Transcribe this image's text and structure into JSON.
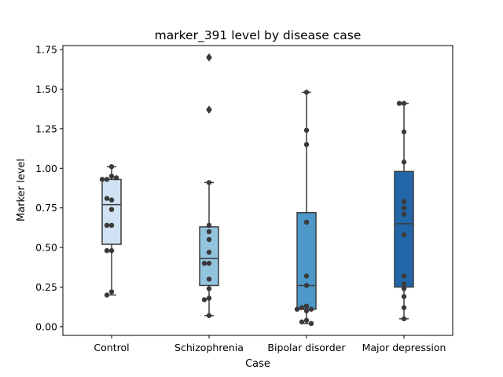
{
  "chart_data": {
    "type": "box",
    "title": "marker_391 level by disease case",
    "xlabel": "Case",
    "ylabel": "Marker level",
    "ylim": [
      -0.055,
      1.775
    ],
    "yticks": [
      0.0,
      0.25,
      0.5,
      0.75,
      1.0,
      1.25,
      1.5,
      1.75
    ],
    "ytick_labels": [
      "0.00",
      "0.25",
      "0.50",
      "0.75",
      "1.00",
      "1.25",
      "1.50",
      "1.75"
    ],
    "categories": [
      "Control",
      "Schizophrenia",
      "Bipolar disorder",
      "Major depression"
    ],
    "colors": [
      "#cfe1f2",
      "#93c4de",
      "#4b98c9",
      "#2366a7"
    ],
    "box_stats": [
      {
        "whislo": 0.2,
        "q1": 0.52,
        "med": 0.77,
        "q3": 0.93,
        "whishi": 1.01,
        "fliers": []
      },
      {
        "whislo": 0.07,
        "q1": 0.26,
        "med": 0.43,
        "q3": 0.63,
        "whishi": 0.91,
        "fliers": [
          1.37,
          1.7
        ]
      },
      {
        "whislo": 0.02,
        "q1": 0.11,
        "med": 0.26,
        "q3": 0.72,
        "whishi": 1.48,
        "fliers": []
      },
      {
        "whislo": 0.05,
        "q1": 0.25,
        "med": 0.65,
        "q3": 0.98,
        "whishi": 1.41,
        "fliers": []
      }
    ],
    "points": [
      [
        0.95,
        0.93,
        0.94,
        1.01,
        0.93,
        0.8,
        0.81,
        0.74,
        0.64,
        0.64,
        0.48,
        0.48,
        0.22,
        0.2
      ],
      [
        1.7,
        1.37,
        0.91,
        0.64,
        0.6,
        0.55,
        0.47,
        0.4,
        0.4,
        0.3,
        0.24,
        0.18,
        0.17,
        0.07
      ],
      [
        1.48,
        1.24,
        1.15,
        0.66,
        0.32,
        0.26,
        0.13,
        0.12,
        0.11,
        0.11,
        0.1,
        0.04,
        0.03,
        0.02
      ],
      [
        1.41,
        1.41,
        1.23,
        1.04,
        0.79,
        0.75,
        0.71,
        0.58,
        0.32,
        0.27,
        0.24,
        0.19,
        0.12,
        0.05
      ]
    ],
    "grid": false,
    "legend": false
  }
}
